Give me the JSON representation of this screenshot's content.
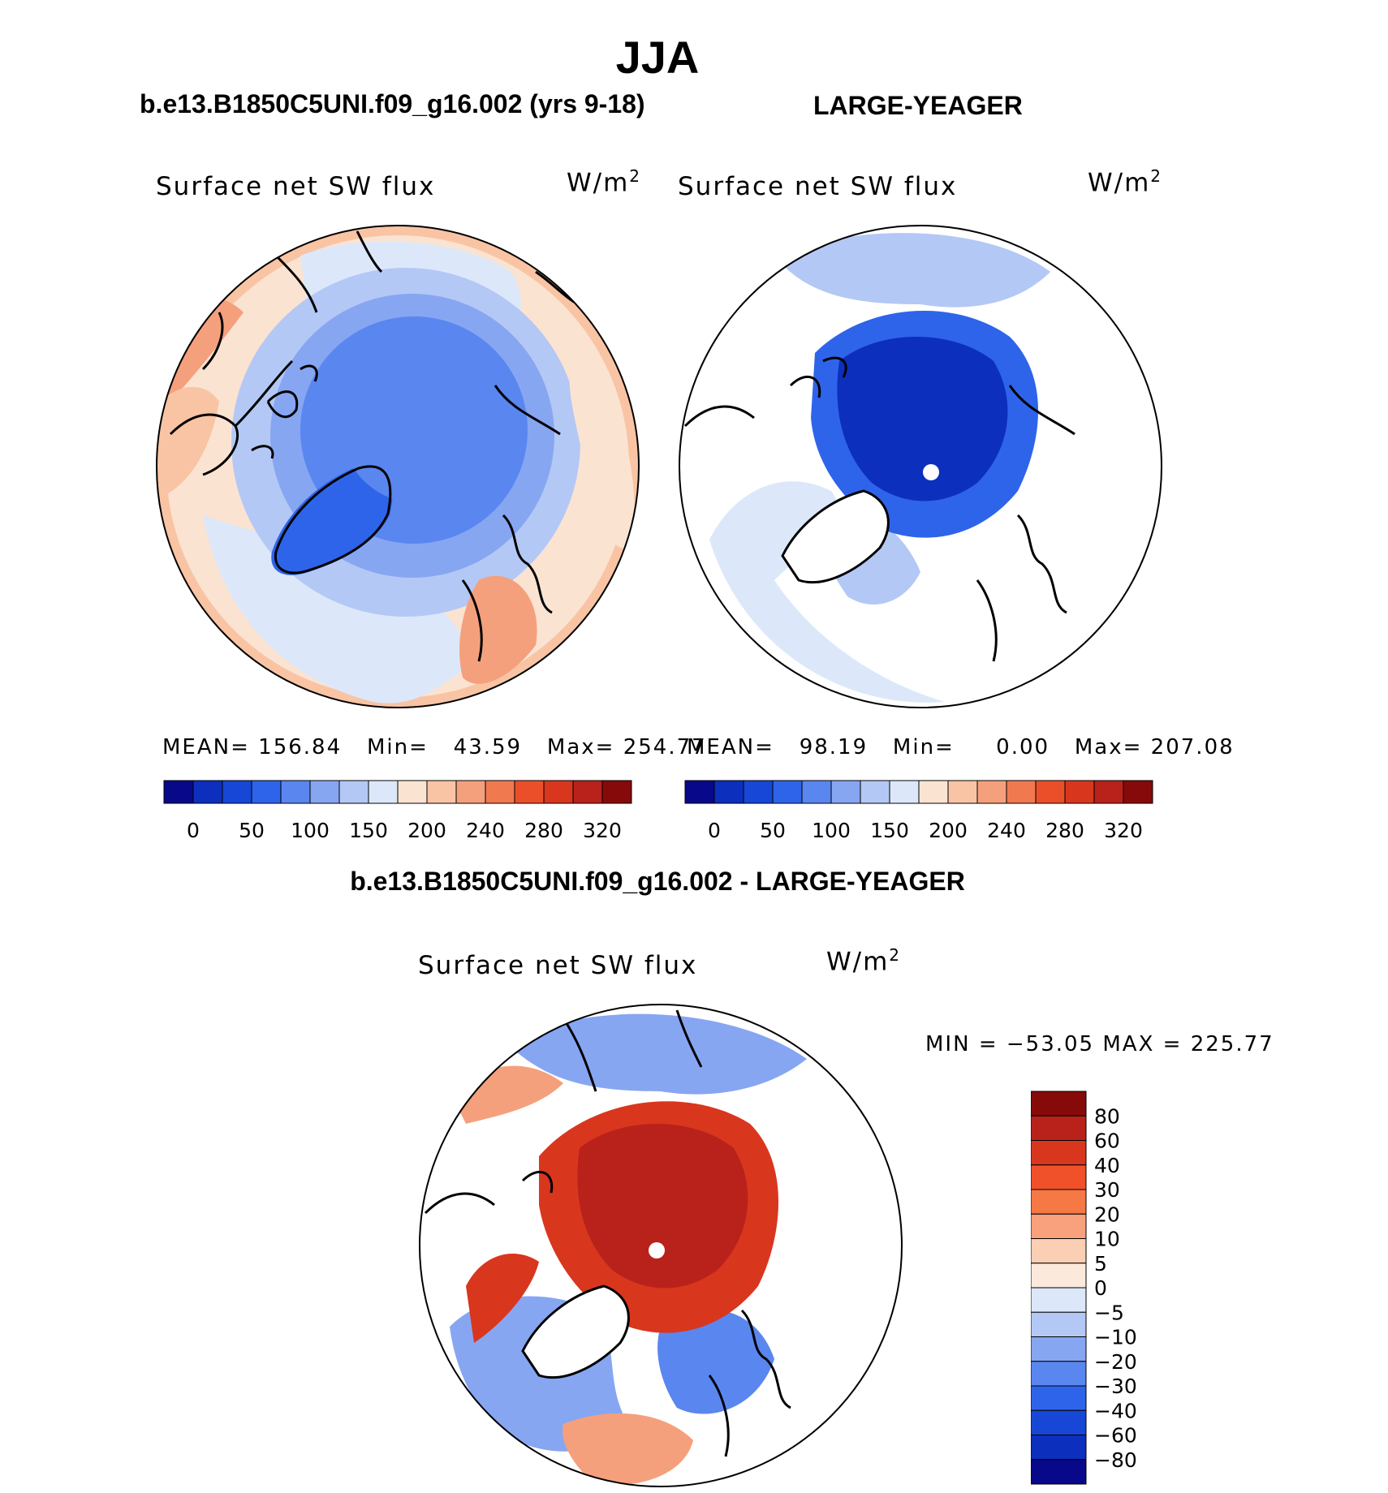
{
  "figure": {
    "title": "JJA",
    "diff_title": "b.e13.B1850C5UNI.f09_g16.002 - LARGE-YEAGER"
  },
  "colors": {
    "map_outline": "#000000",
    "land_mask": "#ffffff"
  },
  "chart_data": [
    {
      "type": "heatmap",
      "projection": "north-polar-stereographic",
      "case_title": "b.e13.B1850C5UNI.f09_g16.002 (yrs 9-18)",
      "variable": "Surface net SW flux",
      "units_base": "W/m",
      "units_exp": "2",
      "stats": {
        "mean_label": "MEAN=",
        "mean": "156.84",
        "min_label": "Min=",
        "min": "43.59",
        "max_label": "Max=",
        "max": "254.77"
      },
      "levels": [
        "0",
        "50",
        "100",
        "150",
        "200",
        "240",
        "280",
        "320"
      ],
      "colorbar_colors": [
        "#08088a",
        "#0d2fbe",
        "#1747d6",
        "#2e64ea",
        "#5a86ef",
        "#87a6f2",
        "#b4c8f5",
        "#dce8fa",
        "#fbe3d2",
        "#f9c4a4",
        "#f5a07c",
        "#f17950",
        "#eb4f2a",
        "#d9361e",
        "#b8221b",
        "#870a0a"
      ],
      "field_description": "Arctic ocean ~60-110 (blue), land and lower latitudes 180-250 (orange/red)"
    },
    {
      "type": "heatmap",
      "projection": "north-polar-stereographic",
      "case_title": "LARGE-YEAGER",
      "variable": "Surface net SW flux",
      "units_base": "W/m",
      "units_exp": "2",
      "stats": {
        "mean_label": "MEAN=",
        "mean": "98.19",
        "min_label": "Min=",
        "min": "0.00",
        "max_label": "Max=",
        "max": "207.08"
      },
      "levels": [
        "0",
        "50",
        "100",
        "150",
        "200",
        "240",
        "280",
        "320"
      ],
      "colorbar_colors": [
        "#08088a",
        "#0d2fbe",
        "#1747d6",
        "#2e64ea",
        "#5a86ef",
        "#87a6f2",
        "#b4c8f5",
        "#dce8fa",
        "#fbe3d2",
        "#f9c4a4",
        "#f5a07c",
        "#f17950",
        "#eb4f2a",
        "#d9361e",
        "#b8221b",
        "#870a0a"
      ],
      "field_description": "Ocean only; Arctic ocean ~0-50 (dark blue), open ocean 100-200"
    },
    {
      "type": "heatmap",
      "projection": "north-polar-stereographic",
      "case_title": "b.e13.B1850C5UNI.f09_g16.002 - LARGE-YEAGER",
      "variable": "Surface net SW flux",
      "units_base": "W/m",
      "units_exp": "2",
      "stats": {
        "text": "MIN = −53.05 MAX = 225.77",
        "min": -53.05,
        "max": 225.77
      },
      "levels": [
        "80",
        "60",
        "40",
        "30",
        "20",
        "10",
        "5",
        "0",
        "−5",
        "−10",
        "−20",
        "−30",
        "−40",
        "−60",
        "−80"
      ],
      "colorbar_colors": [
        "#870a0a",
        "#b8221b",
        "#d9361e",
        "#f0502a",
        "#f57845",
        "#f9a07c",
        "#fbcfb4",
        "#fbe9dc",
        "#dce8fa",
        "#b4c8f5",
        "#87a6f2",
        "#5a86ef",
        "#2e64ea",
        "#1747d6",
        "#0d2fbe",
        "#08088a"
      ],
      "field_description": "Arctic ocean difference +60 to +100 (dark red), North Atlantic -5 to -40 (blue)"
    }
  ]
}
